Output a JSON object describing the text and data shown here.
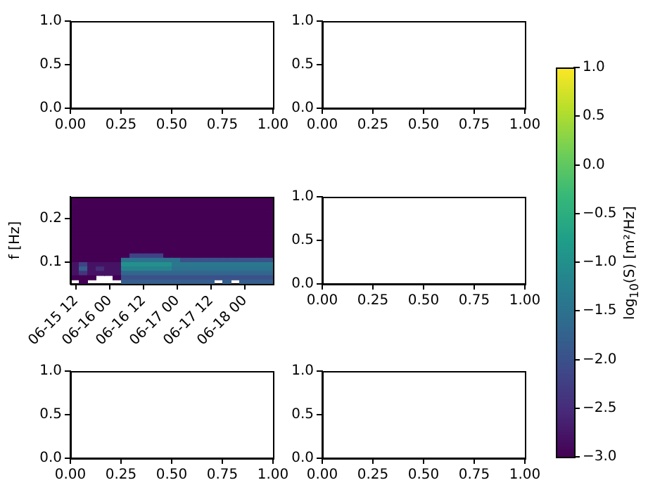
{
  "chart_data": [
    {
      "type": "line",
      "xlim": [
        0,
        1
      ],
      "xticks": [
        {
          "value": 0,
          "label": "0.00"
        },
        {
          "value": 0.25,
          "label": "0.25"
        },
        {
          "value": 0.5,
          "label": "0.50"
        },
        {
          "value": 0.75,
          "label": "0.75"
        },
        {
          "value": 1,
          "label": "1.00"
        }
      ],
      "ylim": [
        0,
        1
      ],
      "yticks": [
        {
          "value": 0,
          "label": "0.0"
        },
        {
          "value": 0.5,
          "label": "0.5"
        },
        {
          "value": 1,
          "label": "1.0"
        }
      ]
    },
    {
      "type": "line",
      "xlim": [
        0,
        1
      ],
      "xticks": [
        {
          "value": 0,
          "label": "0.00"
        },
        {
          "value": 0.25,
          "label": "0.25"
        },
        {
          "value": 0.5,
          "label": "0.50"
        },
        {
          "value": 0.75,
          "label": "0.75"
        },
        {
          "value": 1,
          "label": "1.00"
        }
      ],
      "ylim": [
        0,
        1
      ],
      "yticks": [
        {
          "value": 0,
          "label": "0.0"
        },
        {
          "value": 0.5,
          "label": "0.5"
        },
        {
          "value": 1,
          "label": "1.0"
        }
      ]
    },
    {
      "type": "heatmap",
      "ylabel": "f [Hz]",
      "clabel": "log$_{10}$(S) [m²/Hz]",
      "clim": [
        -3,
        1
      ],
      "cticks": [
        {
          "value": -3,
          "label": "−3.0"
        },
        {
          "value": -2.5,
          "label": "−2.5"
        },
        {
          "value": -2,
          "label": "−2.0"
        },
        {
          "value": -1.5,
          "label": "−1.5"
        },
        {
          "value": -1,
          "label": "−1.0"
        },
        {
          "value": -0.5,
          "label": "−0.5"
        },
        {
          "value": 0,
          "label": "0.0"
        },
        {
          "value": 0.5,
          "label": "0.5"
        },
        {
          "value": 1,
          "label": "1.0"
        }
      ],
      "x": [
        "--06-15T11:30",
        "--06-15T14:30",
        "--06-15T17:30",
        "--06-15T20:30",
        "--06-15T23:30",
        "--06-16T02:30",
        "--06-16T05:30",
        "--06-16T08:30",
        "--06-16T11:30",
        "--06-16T14:30",
        "--06-16T17:30",
        "--06-16T20:30",
        "--06-16T23:30",
        "--06-17T02:30",
        "--06-17T05:30",
        "--06-17T08:30",
        "--06-17T11:30",
        "--06-17T14:30",
        "--06-17T17:30",
        "--06-17T20:30",
        "--06-17T23:30",
        "--06-18T02:30",
        "--06-18T05:30",
        "--06-18T08:30"
      ],
      "xlim": [
        "--06-15T10:00",
        "--06-18T10:00"
      ],
      "xticks": [
        {
          "value": "--06-15T12:00",
          "label": "06-15 12"
        },
        {
          "value": "--06-16T00:00",
          "label": "06-16 00"
        },
        {
          "value": "--06-16T12:00",
          "label": "06-16 12"
        },
        {
          "value": "--06-17T00:00",
          "label": "06-17 00"
        },
        {
          "value": "--06-17T12:00",
          "label": "06-17 12"
        },
        {
          "value": "--06-18T00:00",
          "label": "06-18 00"
        }
      ],
      "ylim": [
        0.05,
        0.25
      ],
      "yticks": [
        0.1,
        0.2
      ],
      "cells": [
        [
          -3,
          -3,
          -3,
          -3,
          -3,
          -3,
          -3,
          -3,
          -3,
          -3,
          -3,
          -3,
          -3,
          -3,
          -3,
          -3,
          -3,
          -3,
          -3,
          -3,
          -3,
          -3,
          -3,
          -3
        ],
        [
          -3,
          -3,
          -3,
          -3,
          -3,
          -3,
          -3,
          -3,
          -3,
          -3,
          -3,
          -3,
          -3,
          -3,
          -3,
          -3,
          -3,
          -3,
          -3,
          -3,
          -3,
          -3,
          -3,
          -3
        ],
        [
          -3,
          -3,
          -3,
          -3,
          -3,
          -3,
          -3,
          -3,
          -3,
          -3,
          -3,
          -3,
          -3,
          -3,
          -3,
          -3,
          -3,
          -3,
          -3,
          -3,
          -3,
          -3,
          -3,
          -3
        ],
        [
          -3,
          -3,
          -3,
          -3,
          -3,
          -3,
          -3,
          -3,
          -3,
          -3,
          -3,
          -3,
          -3,
          -3,
          -3,
          -3,
          -3,
          -3,
          -3,
          -3,
          -3,
          -3,
          -3,
          -3
        ],
        [
          -3,
          -3,
          -3,
          -3,
          -3,
          -3,
          -3,
          -3,
          -3,
          -3,
          -3,
          -3,
          -3,
          -3,
          -3,
          -3,
          -3,
          -3,
          -3,
          -3,
          -3,
          -3,
          -3,
          -3
        ],
        [
          -3,
          -3,
          -3,
          -3,
          -3,
          -3,
          -3,
          -3,
          -3,
          -3,
          -3,
          -3,
          -3,
          -3,
          -3,
          -3,
          -3,
          -3,
          -3,
          -3,
          -3,
          -3,
          -3,
          -3
        ],
        [
          -3,
          -3,
          -3,
          -3,
          -3,
          -3,
          -3,
          -3,
          -3,
          -3,
          -3,
          -3,
          -3,
          -3,
          -3,
          -3,
          -3,
          -3,
          -3,
          -3,
          -3,
          -3,
          -3,
          -3
        ],
        [
          -3,
          -3,
          -3,
          -3,
          -3,
          -3,
          -3,
          -3,
          -3,
          -3,
          -3,
          -3,
          -3,
          -3,
          -3,
          -3,
          -3,
          -3,
          -3,
          -3,
          -3,
          -3,
          -3,
          -3
        ],
        [
          -3,
          -3,
          -3,
          -3,
          -3,
          -3,
          -3,
          -3,
          -3,
          -3,
          -3,
          -3,
          -3,
          -3,
          -3,
          -3,
          -3,
          -3,
          -3,
          -3,
          -3,
          -3,
          -3,
          -3
        ],
        [
          -3,
          -3,
          -3,
          -3,
          -3,
          -3,
          -3,
          -3,
          -3,
          -3,
          -3,
          -3,
          -3,
          -3,
          -3,
          -3,
          -3,
          -3,
          -3,
          -3,
          -3,
          -3,
          -3,
          -3
        ],
        [
          -3,
          -3,
          -3,
          -3,
          -3,
          -3,
          -3,
          -3,
          -3,
          -3,
          -3,
          -3,
          -3,
          -3,
          -3,
          -3,
          -3,
          -3,
          -3,
          -3,
          -3,
          -3,
          -3,
          -3
        ],
        [
          -3,
          -3,
          -3,
          -3,
          -3,
          -3,
          -3,
          -3,
          -3,
          -3,
          -3,
          -3,
          -3,
          -3,
          -3,
          -3,
          -3,
          -3,
          -3,
          -3,
          -3,
          -3,
          -3,
          -3
        ],
        [
          -3,
          -3,
          -3,
          -3,
          -3,
          -3,
          -3,
          -3,
          -3,
          -3,
          -3,
          -3,
          -3,
          -3,
          -3,
          -3,
          -3,
          -3,
          -3,
          -3,
          -3,
          -3,
          -3,
          -3
        ],
        [
          -3,
          -3,
          -3,
          -3,
          -3,
          -3,
          -3,
          -2.2,
          -2.2,
          -2.2,
          -2.2,
          -3,
          -3,
          -3,
          -3,
          -3,
          -3,
          -3,
          -3,
          -3,
          -3,
          -3,
          -3,
          -3
        ],
        [
          -3,
          -3,
          -3,
          -3,
          -3,
          -3,
          -1.5,
          -1.5,
          -1.5,
          -1.5,
          -1.5,
          -1.5,
          -1.5,
          -2,
          -2,
          -2,
          -2,
          -2,
          -2,
          -2,
          -2,
          -2,
          -2,
          -2
        ],
        [
          -2.8,
          -2.2,
          -2.8,
          -2.8,
          -2.8,
          -2.8,
          -1,
          -1,
          -1,
          -1,
          -1,
          -1,
          -1.4,
          -1.4,
          -1.4,
          -1.4,
          -1.4,
          -1.4,
          -1.4,
          -1.4,
          -1.4,
          -1.4,
          -1.4,
          -1.4
        ],
        [
          -2.8,
          -1.8,
          -2.8,
          -2.5,
          -2.8,
          -2.8,
          -1.2,
          -1.2,
          -1.2,
          -1.2,
          -1.2,
          -1.2,
          -1.5,
          -1.5,
          -1.5,
          -1.5,
          -1.5,
          -1.5,
          -1.5,
          -1.5,
          -1.5,
          -1.5,
          -1.5,
          -1.5
        ],
        [
          -2.8,
          -2.4,
          -2.8,
          -2.8,
          -2.8,
          -2.8,
          -1.7,
          -1.7,
          -1.7,
          -1.7,
          -1.7,
          -1.7,
          -1.7,
          -1.7,
          -1.7,
          -1.7,
          -1.7,
          -1.7,
          -1.7,
          -1.7,
          -1.7,
          -1.7,
          -1.7,
          -1.7
        ],
        [
          -3,
          -3,
          -3,
          null,
          null,
          -3,
          -2,
          -2,
          -2,
          -2,
          -2,
          -2,
          -2,
          -2,
          -2,
          -2,
          -2,
          -2,
          -2,
          -2,
          -2,
          -2,
          -2,
          -2
        ],
        [
          null,
          -3,
          null,
          null,
          null,
          null,
          -1.8,
          -1.8,
          -1.8,
          -1.8,
          -1.8,
          -1.8,
          -1.8,
          -1.8,
          -1.8,
          -1.8,
          -1.8,
          null,
          -1.8,
          null,
          -1.8,
          -1.8,
          -1.8,
          -1.8
        ]
      ]
    },
    {
      "type": "line",
      "xlim": [
        0,
        1
      ],
      "xticks": [
        {
          "value": 0,
          "label": "0.00"
        },
        {
          "value": 0.25,
          "label": "0.25"
        },
        {
          "value": 0.5,
          "label": "0.50"
        },
        {
          "value": 0.75,
          "label": "0.75"
        },
        {
          "value": 1,
          "label": "1.00"
        }
      ],
      "ylim": [
        0,
        1
      ],
      "yticks": [
        {
          "value": 0,
          "label": "0.0"
        },
        {
          "value": 0.5,
          "label": "0.5"
        },
        {
          "value": 1,
          "label": "1.0"
        }
      ]
    },
    {
      "type": "line",
      "xlim": [
        0,
        1
      ],
      "xticks": [
        {
          "value": 0,
          "label": "0.00"
        },
        {
          "value": 0.25,
          "label": "0.25"
        },
        {
          "value": 0.5,
          "label": "0.50"
        },
        {
          "value": 0.75,
          "label": "0.75"
        },
        {
          "value": 1,
          "label": "1.00"
        }
      ],
      "ylim": [
        0,
        1
      ],
      "yticks": [
        {
          "value": 0,
          "label": "0.0"
        },
        {
          "value": 0.5,
          "label": "0.5"
        },
        {
          "value": 1,
          "label": "1.0"
        }
      ]
    },
    {
      "type": "line",
      "xlim": [
        0,
        1
      ],
      "xticks": [
        {
          "value": 0,
          "label": "0.00"
        },
        {
          "value": 0.25,
          "label": "0.25"
        },
        {
          "value": 0.5,
          "label": "0.50"
        },
        {
          "value": 0.75,
          "label": "0.75"
        },
        {
          "value": 1,
          "label": "1.00"
        }
      ],
      "ylim": [
        0,
        1
      ],
      "yticks": [
        {
          "value": 0,
          "label": "0.0"
        },
        {
          "value": 0.5,
          "label": "0.5"
        },
        {
          "value": 1,
          "label": "1.0"
        }
      ]
    }
  ]
}
